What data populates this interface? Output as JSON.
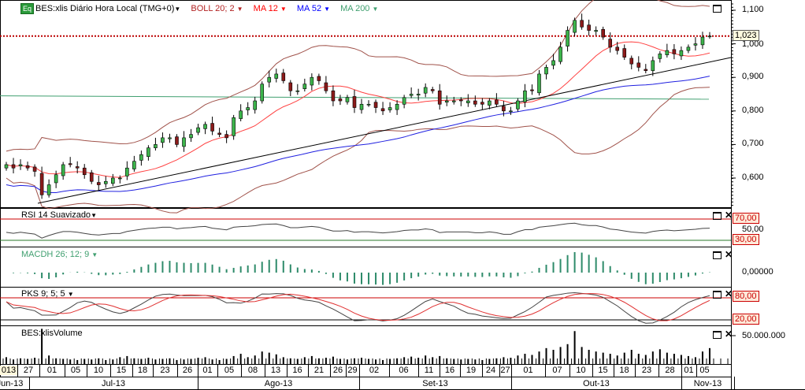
{
  "header": {
    "symbol_badge": "Eq",
    "title": "BES:xlis Diário Hora Local (TMG+0)",
    "indicators": [
      {
        "label": "BOLL 20; 2",
        "color": "#b22222"
      },
      {
        "label": "MA 12",
        "color": "#ff0000"
      },
      {
        "label": "MA 52",
        "color": "#0000ff"
      },
      {
        "label": "MA 200",
        "color": "#3f9f6f"
      }
    ]
  },
  "price_axis": {
    "ticks": [
      "1,100",
      "1,000",
      "0,900",
      "0,800",
      "0,700",
      "0,600"
    ],
    "last_price": "1,023"
  },
  "panels": {
    "rsi": {
      "title": "RSI 14 Suavizado",
      "upper": "70,00",
      "mid": "50,00",
      "lower": "30,00"
    },
    "macd": {
      "title": "MACDH 26; 12; 9",
      "zero": "0,00000"
    },
    "pks": {
      "title": "PKS 9; 5; 5",
      "upper": "80,00",
      "lower": "20,00"
    },
    "volume": {
      "title": "BES:xlisVolume",
      "tick": "50.000.000"
    }
  },
  "date_axis": {
    "days": [
      "013",
      "27",
      "01",
      "05",
      "10",
      "15",
      "18",
      "23",
      "26",
      "01",
      "05",
      "08",
      "13",
      "16",
      "21",
      "26",
      "29",
      "02",
      "06",
      "11",
      "16",
      "19",
      "24",
      "27",
      "01",
      "07",
      "10",
      "15",
      "18",
      "23",
      "28",
      "01",
      "05"
    ],
    "months": [
      "Jun-13",
      "Jul-13",
      "Ago-13",
      "Set-13",
      "Out-13",
      "Nov-13"
    ]
  },
  "chart_data": {
    "type": "candlestick",
    "price_range": [
      0.52,
      1.12
    ],
    "closes": [
      0.64,
      0.63,
      0.64,
      0.63,
      0.62,
      0.55,
      0.58,
      0.61,
      0.64,
      0.64,
      0.63,
      0.61,
      0.59,
      0.58,
      0.59,
      0.6,
      0.6,
      0.63,
      0.65,
      0.67,
      0.69,
      0.7,
      0.72,
      0.72,
      0.7,
      0.72,
      0.73,
      0.75,
      0.76,
      0.74,
      0.73,
      0.72,
      0.78,
      0.8,
      0.81,
      0.83,
      0.88,
      0.9,
      0.91,
      0.89,
      0.86,
      0.86,
      0.88,
      0.9,
      0.89,
      0.86,
      0.83,
      0.83,
      0.84,
      0.81,
      0.82,
      0.82,
      0.81,
      0.8,
      0.81,
      0.82,
      0.84,
      0.85,
      0.85,
      0.87,
      0.86,
      0.82,
      0.83,
      0.83,
      0.83,
      0.83,
      0.82,
      0.82,
      0.83,
      0.82,
      0.8,
      0.8,
      0.83,
      0.86,
      0.86,
      0.91,
      0.93,
      0.95,
      0.99,
      1.04,
      1.07,
      1.05,
      1.04,
      1.04,
      1.02,
      0.99,
      0.98,
      0.96,
      0.94,
      0.93,
      0.92,
      0.95,
      0.97,
      0.98,
      0.97,
      0.98,
      0.99,
      1.0,
      1.02,
      1.023
    ],
    "volume_millions": [
      12,
      8,
      10,
      9,
      11,
      62,
      15,
      10,
      9,
      8,
      7,
      9,
      8,
      10,
      7,
      8,
      12,
      14,
      10,
      9,
      11,
      8,
      9,
      10,
      7,
      8,
      9,
      11,
      12,
      8,
      7,
      9,
      14,
      18,
      12,
      15,
      22,
      20,
      17,
      12,
      10,
      9,
      12,
      14,
      10,
      11,
      13,
      9,
      8,
      10,
      11,
      9,
      8,
      7,
      9,
      10,
      12,
      13,
      11,
      15,
      12,
      14,
      10,
      9,
      8,
      9,
      8,
      7,
      9,
      10,
      12,
      11,
      15,
      18,
      16,
      22,
      28,
      25,
      30,
      35,
      58,
      30,
      25,
      22,
      20,
      18,
      15,
      20,
      25,
      18,
      16,
      22,
      26,
      20,
      18,
      16,
      14,
      12,
      22,
      28
    ],
    "ma200": [
      0.845,
      0.835
    ],
    "trendline": "support line from late June low to November"
  }
}
